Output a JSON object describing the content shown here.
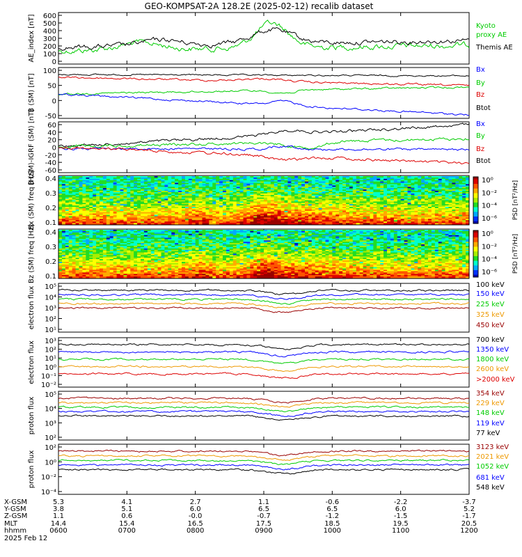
{
  "title": "GEO-KOMPSAT-2A 128.2E (2025-02-12) recalib dataset",
  "colors": {
    "black": "#000000",
    "blue": "#0000ff",
    "green": "#00cc00",
    "red": "#dd0000",
    "orange": "#ee9900",
    "maroon": "#990000"
  },
  "chart_data": [
    {
      "type": "line",
      "ylabel": "AE_index [nT]",
      "yticks": [
        "600",
        "500",
        "400",
        "300",
        "200",
        "100",
        "0"
      ],
      "legend": [
        {
          "name": "Kyoto proxy AE",
          "color": "#00cc00"
        },
        {
          "name": "Themis AE",
          "color": "#000000"
        }
      ]
    },
    {
      "type": "line",
      "ylabel": "B (SM) [nT]",
      "yticks": [
        "100",
        "50",
        "0",
        "-50"
      ],
      "legend": [
        {
          "name": "Bx",
          "color": "#0000ff"
        },
        {
          "name": "By",
          "color": "#00cc00"
        },
        {
          "name": "Bz",
          "color": "#dd0000"
        },
        {
          "name": "Btot",
          "color": "#000000"
        }
      ]
    },
    {
      "type": "line",
      "ylabel": "B (SM)-IGRF (SM) [nT]",
      "yticks": [
        "60",
        "40",
        "20",
        "0",
        "-20",
        "-40",
        "-60"
      ],
      "legend": [
        {
          "name": "Bx",
          "color": "#0000ff"
        },
        {
          "name": "By",
          "color": "#00cc00"
        },
        {
          "name": "Bz",
          "color": "#dd0000"
        },
        {
          "name": "Btot",
          "color": "#000000"
        }
      ]
    },
    {
      "type": "heatmap",
      "ylabel": "Bx (SM) freq [Hz]",
      "yticks": [
        "0.4",
        "0.3",
        "0.2",
        "0.1"
      ],
      "colorbar": {
        "label": "PSD [nT²/Hz]",
        "ticks": [
          "10⁰",
          "10⁻²",
          "10⁻⁴",
          "10⁻⁶"
        ]
      }
    },
    {
      "type": "heatmap",
      "ylabel": "Bz (SM) freq [Hz]",
      "yticks": [
        "0.4",
        "0.3",
        "0.2",
        "0.1"
      ],
      "colorbar": {
        "label": "PSD [nT²/Hz]",
        "ticks": [
          "10⁰",
          "10⁻²",
          "10⁻⁴",
          "10⁻⁶"
        ]
      }
    },
    {
      "type": "line",
      "ylabel": "electron flux",
      "yticks": [
        "10⁵",
        "10⁴",
        "10³",
        "10²",
        "10¹"
      ],
      "legend": [
        {
          "name": "100 keV",
          "color": "#000000"
        },
        {
          "name": "150 keV",
          "color": "#0000ff"
        },
        {
          "name": "225 keV",
          "color": "#00cc00"
        },
        {
          "name": "325 keV",
          "color": "#ee9900"
        },
        {
          "name": "450 keV",
          "color": "#990000"
        }
      ]
    },
    {
      "type": "line",
      "ylabel": "electron flux",
      "yticks": [
        "10³",
        "10²",
        "10¹",
        "10⁰",
        "10⁻¹",
        "10⁻²"
      ],
      "legend": [
        {
          "name": "700 keV",
          "color": "#000000"
        },
        {
          "name": "1350 keV",
          "color": "#0000ff"
        },
        {
          "name": "1800 keV",
          "color": "#00cc00"
        },
        {
          "name": "2600 keV",
          "color": "#ee9900"
        },
        {
          "name": ">2000 keV",
          "color": "#dd0000"
        }
      ]
    },
    {
      "type": "line",
      "ylabel": "proton flux",
      "yticks": [
        "10⁵",
        "10⁴",
        "10³",
        "10²"
      ],
      "legend": [
        {
          "name": "354 keV",
          "color": "#990000"
        },
        {
          "name": "229 keV",
          "color": "#ee9900"
        },
        {
          "name": "148 keV",
          "color": "#00cc00"
        },
        {
          "name": "119 keV",
          "color": "#0000ff"
        },
        {
          "name": "77 keV",
          "color": "#000000"
        }
      ]
    },
    {
      "type": "line",
      "ylabel": "proton flux",
      "yticks": [
        "10²",
        "10⁰",
        "10⁻²",
        "10⁻⁴"
      ],
      "legend": [
        {
          "name": "3123 keV",
          "color": "#990000"
        },
        {
          "name": "2021 keV",
          "color": "#ee9900"
        },
        {
          "name": "1052 keV",
          "color": "#00cc00"
        },
        {
          "name": "681 keV",
          "color": "#0000ff"
        },
        {
          "name": "548 keV",
          "color": "#000000"
        }
      ]
    }
  ],
  "ephemeris": {
    "labels": [
      "X-GSM",
      "Y-GSM",
      "Z-GSM",
      "MLT",
      "hhmm"
    ],
    "date": "2025 Feb 12",
    "columns": [
      [
        "5.3",
        "3.8",
        "1.1",
        "14.4",
        "0600"
      ],
      [
        "4.1",
        "5.1",
        "0.6",
        "15.4",
        "0700"
      ],
      [
        "2.7",
        "6.0",
        "-0.0",
        "16.5",
        "0800"
      ],
      [
        "1.1",
        "6.5",
        "-0.7",
        "17.5",
        "0900"
      ],
      [
        "-0.6",
        "6.5",
        "-1.2",
        "18.5",
        "1000"
      ],
      [
        "-2.2",
        "6.0",
        "-1.5",
        "19.5",
        "1100"
      ],
      [
        "-3.7",
        "5.2",
        "-1.7",
        "20.5",
        "1200"
      ]
    ]
  }
}
